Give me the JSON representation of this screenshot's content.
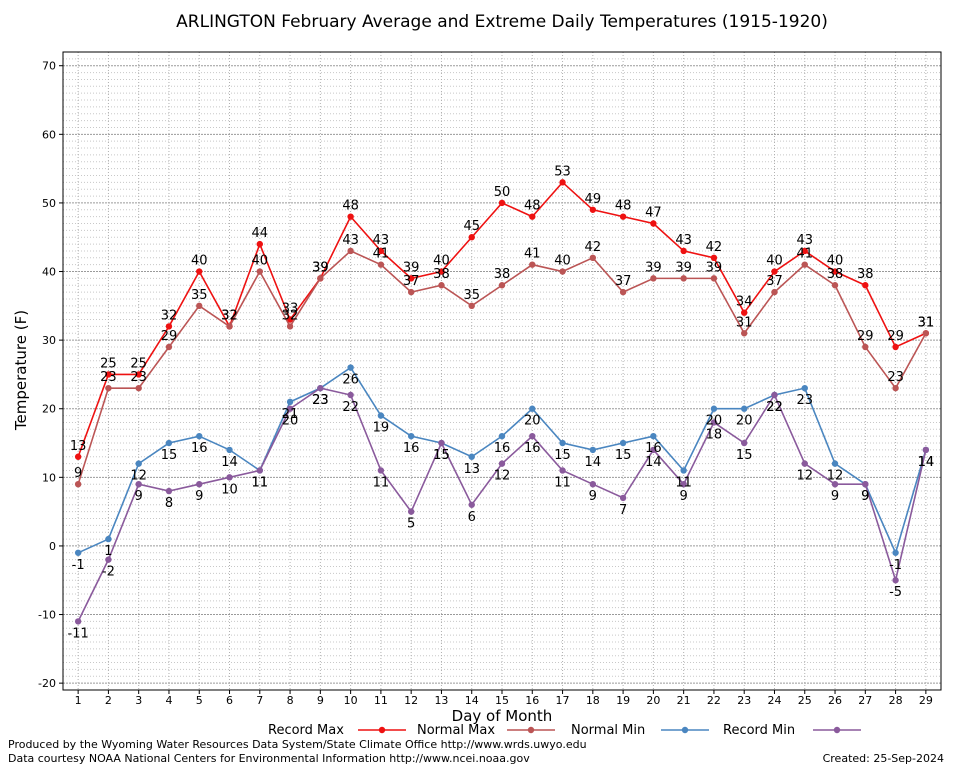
{
  "chart_data": {
    "type": "line",
    "title": "ARLINGTON February Average and Extreme Daily Temperatures (1915-1920)",
    "xlabel": "Day of Month",
    "ylabel": "Temperature (F)",
    "xlim": [
      0.5,
      29.5
    ],
    "ylim": [
      -21,
      72
    ],
    "y_ticks": [
      -20,
      -10,
      0,
      10,
      20,
      30,
      40,
      50,
      60,
      70
    ],
    "x": [
      1,
      2,
      3,
      4,
      5,
      6,
      7,
      8,
      9,
      10,
      11,
      12,
      13,
      14,
      15,
      16,
      17,
      18,
      19,
      20,
      21,
      22,
      23,
      24,
      25,
      26,
      27,
      28,
      29
    ],
    "grid": true,
    "legend_position": "bottom",
    "series": [
      {
        "name": "Record Max",
        "color": "#ee1111",
        "values": [
          13,
          25,
          25,
          32,
          40,
          32,
          44,
          33,
          39,
          48,
          43,
          39,
          40,
          45,
          50,
          48,
          53,
          49,
          48,
          47,
          43,
          42,
          34,
          40,
          43,
          40,
          38,
          29,
          31
        ],
        "labels_above": true
      },
      {
        "name": "Normal Max",
        "color": "#bb5555",
        "values": [
          9,
          23,
          23,
          29,
          35,
          32,
          40,
          32,
          39,
          43,
          41,
          37,
          38,
          35,
          38,
          41,
          40,
          42,
          37,
          39,
          39,
          39,
          31,
          37,
          41,
          38,
          29,
          23,
          31
        ],
        "labels_above": true
      },
      {
        "name": "Normal Min",
        "color": "#4a86c0",
        "values": [
          -1,
          1,
          12,
          15,
          16,
          14,
          11,
          21,
          23,
          26,
          19,
          16,
          15,
          13,
          16,
          20,
          15,
          14,
          15,
          16,
          11,
          20,
          20,
          22,
          23,
          12,
          9,
          -1,
          14
        ],
        "labels_above": false
      },
      {
        "name": "Record Min",
        "color": "#8a5a9c",
        "values": [
          -11,
          -2,
          9,
          8,
          9,
          10,
          11,
          20,
          23,
          22,
          11,
          5,
          15,
          6,
          12,
          16,
          11,
          9,
          7,
          14,
          9,
          18,
          15,
          22,
          12,
          9,
          9,
          -5,
          14
        ],
        "labels_above": false
      }
    ]
  },
  "footer": {
    "produced_by": "Produced by the Wyoming Water Resources Data System/State Climate Office http://www.wrds.uwyo.edu",
    "courtesy": "Data courtesy NOAA National Centers for Environmental Information http://www.ncei.noaa.gov",
    "created": "Created:  25-Sep-2024"
  }
}
